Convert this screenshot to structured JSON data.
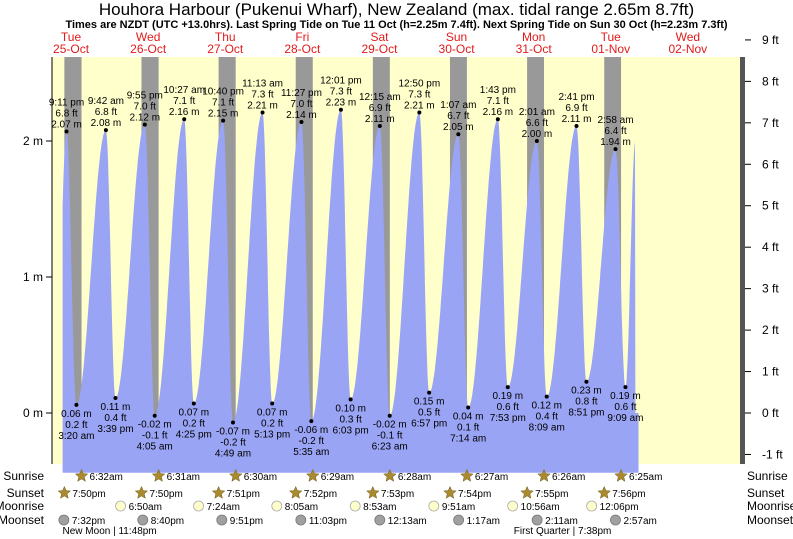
{
  "header": {
    "title": "Houhora Harbour (Pukenui Wharf), New Zealand (max. tidal range 2.65m 8.7ft)",
    "subtitle": "Times are NZDT (UTC +13.0hrs). Last Spring Tide on Tue 11 Oct (h=2.25m 7.4ft). Next Spring Tide on Sun 30 Oct (h=2.23m 7.3ft)"
  },
  "colors": {
    "day": "#ffffcc",
    "night": "#999999",
    "tide": "#9aa4f4",
    "sun_star": "#a98a2e",
    "moon_rise": "#ffffcc",
    "moon_set": "#a0a0a0"
  },
  "chart_data": {
    "type": "area",
    "days": [
      {
        "name": "Tue",
        "date": "25-Oct"
      },
      {
        "name": "Wed",
        "date": "26-Oct"
      },
      {
        "name": "Thu",
        "date": "27-Oct"
      },
      {
        "name": "Fri",
        "date": "28-Oct"
      },
      {
        "name": "Sat",
        "date": "29-Oct"
      },
      {
        "name": "Sun",
        "date": "30-Oct"
      },
      {
        "name": "Mon",
        "date": "31-Oct"
      },
      {
        "name": "Tue",
        "date": "01-Nov"
      },
      {
        "name": "Wed",
        "date": "02-Nov"
      }
    ],
    "y_left_ticks": [
      {
        "v": 0,
        "label": "0 m"
      },
      {
        "v": 1,
        "label": "1 m"
      },
      {
        "v": 2,
        "label": "2 m"
      }
    ],
    "y_right_ticks": [
      "-1 ft",
      "0 ft",
      "1 ft",
      "2 ft",
      "3 ft",
      "4 ft",
      "5 ft",
      "6 ft",
      "7 ft",
      "8 ft",
      "9 ft"
    ],
    "ylim_m": [
      -0.46,
      2.74
    ],
    "tides": [
      {
        "type": "high",
        "t": 0.8824,
        "m": 2.07,
        "time": "9:11 pm",
        "ft": "6.8 ft",
        "h": "2.07 m"
      },
      {
        "type": "low",
        "t": 1.1389,
        "m": 0.06,
        "time": "3:20 am",
        "ft": "0.2 ft",
        "h": "0.06 m"
      },
      {
        "type": "high",
        "t": 1.9042,
        "m": 2.08,
        "time": "9:42 am",
        "ft": "6.8 ft",
        "h": "2.08 m"
      },
      {
        "type": "low",
        "t": 2.1521,
        "m": 0.11,
        "time": "3:39 pm",
        "ft": "0.4 ft",
        "h": "0.11 m"
      },
      {
        "type": "high",
        "t": 2.9132,
        "m": 2.12,
        "time": "9:55 pm",
        "ft": "7.0 ft",
        "h": "2.12 m"
      },
      {
        "type": "low",
        "t": 3.1701,
        "m": -0.02,
        "time": "4:05 am",
        "ft": "-0.1 ft",
        "h": "-0.02 m"
      },
      {
        "type": "high",
        "t": 3.9354,
        "m": 2.16,
        "time": "10:27 am",
        "ft": "7.1 ft",
        "h": "2.16 m"
      },
      {
        "type": "low",
        "t": 4.184,
        "m": 0.07,
        "time": "4:25 pm",
        "ft": "0.2 ft",
        "h": "0.07 m"
      },
      {
        "type": "high",
        "t": 4.9444,
        "m": 2.15,
        "time": "10:40 pm",
        "ft": "7.1 ft",
        "h": "2.15 m"
      },
      {
        "type": "low",
        "t": 5.2007,
        "m": -0.07,
        "time": "4:49 am",
        "ft": "-0.2 ft",
        "h": "-0.07 m"
      },
      {
        "type": "high",
        "t": 5.9674,
        "m": 2.21,
        "time": "11:13 am",
        "ft": "7.3 ft",
        "h": "2.21 m"
      },
      {
        "type": "low",
        "t": 6.2174,
        "m": 0.07,
        "time": "5:13 pm",
        "ft": "0.2 ft",
        "h": "0.07 m"
      },
      {
        "type": "high",
        "t": 6.9771,
        "m": 2.14,
        "time": "11:27 pm",
        "ft": "7.0 ft",
        "h": "2.14 m"
      },
      {
        "type": "low",
        "t": 7.2326,
        "m": -0.06,
        "time": "5:35 am",
        "ft": "-0.2 ft",
        "h": "-0.06 m"
      },
      {
        "type": "high",
        "t": 8.0007,
        "m": 2.23,
        "time": "12:01 pm",
        "ft": "7.3 ft",
        "h": "2.23 m"
      },
      {
        "type": "low",
        "t": 8.2521,
        "m": 0.1,
        "time": "6:03 pm",
        "ft": "0.3 ft",
        "h": "0.10 m"
      },
      {
        "type": "high",
        "t": 9.0104,
        "m": 2.11,
        "time": "12:15 am",
        "ft": "6.9 ft",
        "h": "2.11 m"
      },
      {
        "type": "low",
        "t": 9.266,
        "m": -0.02,
        "time": "6:23 am",
        "ft": "-0.1 ft",
        "h": "-0.02 m"
      },
      {
        "type": "high",
        "t": 10.0347,
        "m": 2.21,
        "time": "12:50 pm",
        "ft": "7.3 ft",
        "h": "2.21 m"
      },
      {
        "type": "low",
        "t": 10.2896,
        "m": 0.15,
        "time": "6:57 pm",
        "ft": "0.5 ft",
        "h": "0.15 m"
      },
      {
        "type": "high",
        "t": 11.0465,
        "m": 2.05,
        "time": "1:07 am",
        "ft": "6.7 ft",
        "h": "2.05 m"
      },
      {
        "type": "low",
        "t": 11.3014,
        "m": 0.04,
        "time": "7:14 am",
        "ft": "0.1 ft",
        "h": "0.04 m"
      },
      {
        "type": "high",
        "t": 12.0715,
        "m": 2.16,
        "time": "1:43 pm",
        "ft": "7.1 ft",
        "h": "2.16 m"
      },
      {
        "type": "low",
        "t": 12.3285,
        "m": 0.19,
        "time": "7:53 pm",
        "ft": "0.6 ft",
        "h": "0.19 m"
      },
      {
        "type": "high",
        "t": 13.084,
        "m": 2.0,
        "time": "2:01 am",
        "ft": "6.6 ft",
        "h": "2.00 m"
      },
      {
        "type": "low",
        "t": 13.3396,
        "m": 0.12,
        "time": "8:09 am",
        "ft": "0.4 ft",
        "h": "0.12 m"
      },
      {
        "type": "high",
        "t": 14.1118,
        "m": 2.11,
        "time": "2:41 pm",
        "ft": "6.9 ft",
        "h": "2.11 m"
      },
      {
        "type": "low",
        "t": 14.3687,
        "m": 0.23,
        "time": "8:51 pm",
        "ft": "0.8 ft",
        "h": "0.23 m"
      },
      {
        "type": "high",
        "t": 15.1236,
        "m": 1.94,
        "time": "2:58 am",
        "ft": "6.4 ft",
        "h": "1.94 m"
      },
      {
        "type": "low",
        "t": 15.3813,
        "m": 0.19,
        "time": "9:09 am",
        "ft": "0.6 ft",
        "h": "0.19 m"
      }
    ],
    "sun": [
      {
        "rise": "6:32am",
        "set": "7:50pm",
        "rise_t": 1.2722,
        "set_t": 0.8264
      },
      {
        "rise": "6:31am",
        "set": "7:50pm",
        "rise_t": 3.2715,
        "set_t": 2.8264
      },
      {
        "rise": "6:30am",
        "set": "7:51pm",
        "rise_t": 5.2708,
        "set_t": 4.8271
      },
      {
        "rise": "6:29am",
        "set": "7:52pm",
        "rise_t": 7.2701,
        "set_t": 6.8278
      },
      {
        "rise": "6:28am",
        "set": "7:53pm",
        "rise_t": 9.2694,
        "set_t": 8.8285
      },
      {
        "rise": "6:27am",
        "set": "7:54pm",
        "rise_t": 11.2688,
        "set_t": 10.8292
      },
      {
        "rise": "6:26am",
        "set": "7:55pm",
        "rise_t": 13.2681,
        "set_t": 12.8299
      },
      {
        "rise": "6:25am",
        "set": "7:56pm",
        "rise_t": 15.2674,
        "set_t": 14.8306
      }
    ],
    "moonrise": [
      {
        "time": "6:50am",
        "t": 2.2847
      },
      {
        "time": "7:24am",
        "t": 4.3083
      },
      {
        "time": "8:05am",
        "t": 6.3368
      },
      {
        "time": "8:53am",
        "t": 8.3701
      },
      {
        "time": "9:51am",
        "t": 10.4104
      },
      {
        "time": "10:56am",
        "t": 12.4556
      },
      {
        "time": "12:06pm",
        "t": 14.5042
      }
    ],
    "moonset": [
      {
        "time": "7:32pm",
        "t": 0.8139
      },
      {
        "time": "8:40pm",
        "t": 2.8611
      },
      {
        "time": "9:51pm",
        "t": 4.9104
      },
      {
        "time": "11:03pm",
        "t": 6.9604
      },
      {
        "time": "12:13am",
        "t": 9.009
      },
      {
        "time": "1:17am",
        "t": 11.0535
      },
      {
        "time": "2:11am",
        "t": 13.091
      },
      {
        "time": "2:57am",
        "t": 15.1229
      }
    ],
    "phases": [
      {
        "label": "New Moon | 11:48pm",
        "t": 2.0
      },
      {
        "label": "First Quarter | 7:38pm",
        "t": 13.75
      }
    ],
    "row_labels": [
      "Sunrise",
      "Sunset",
      "Moonrise",
      "Moonset"
    ]
  }
}
